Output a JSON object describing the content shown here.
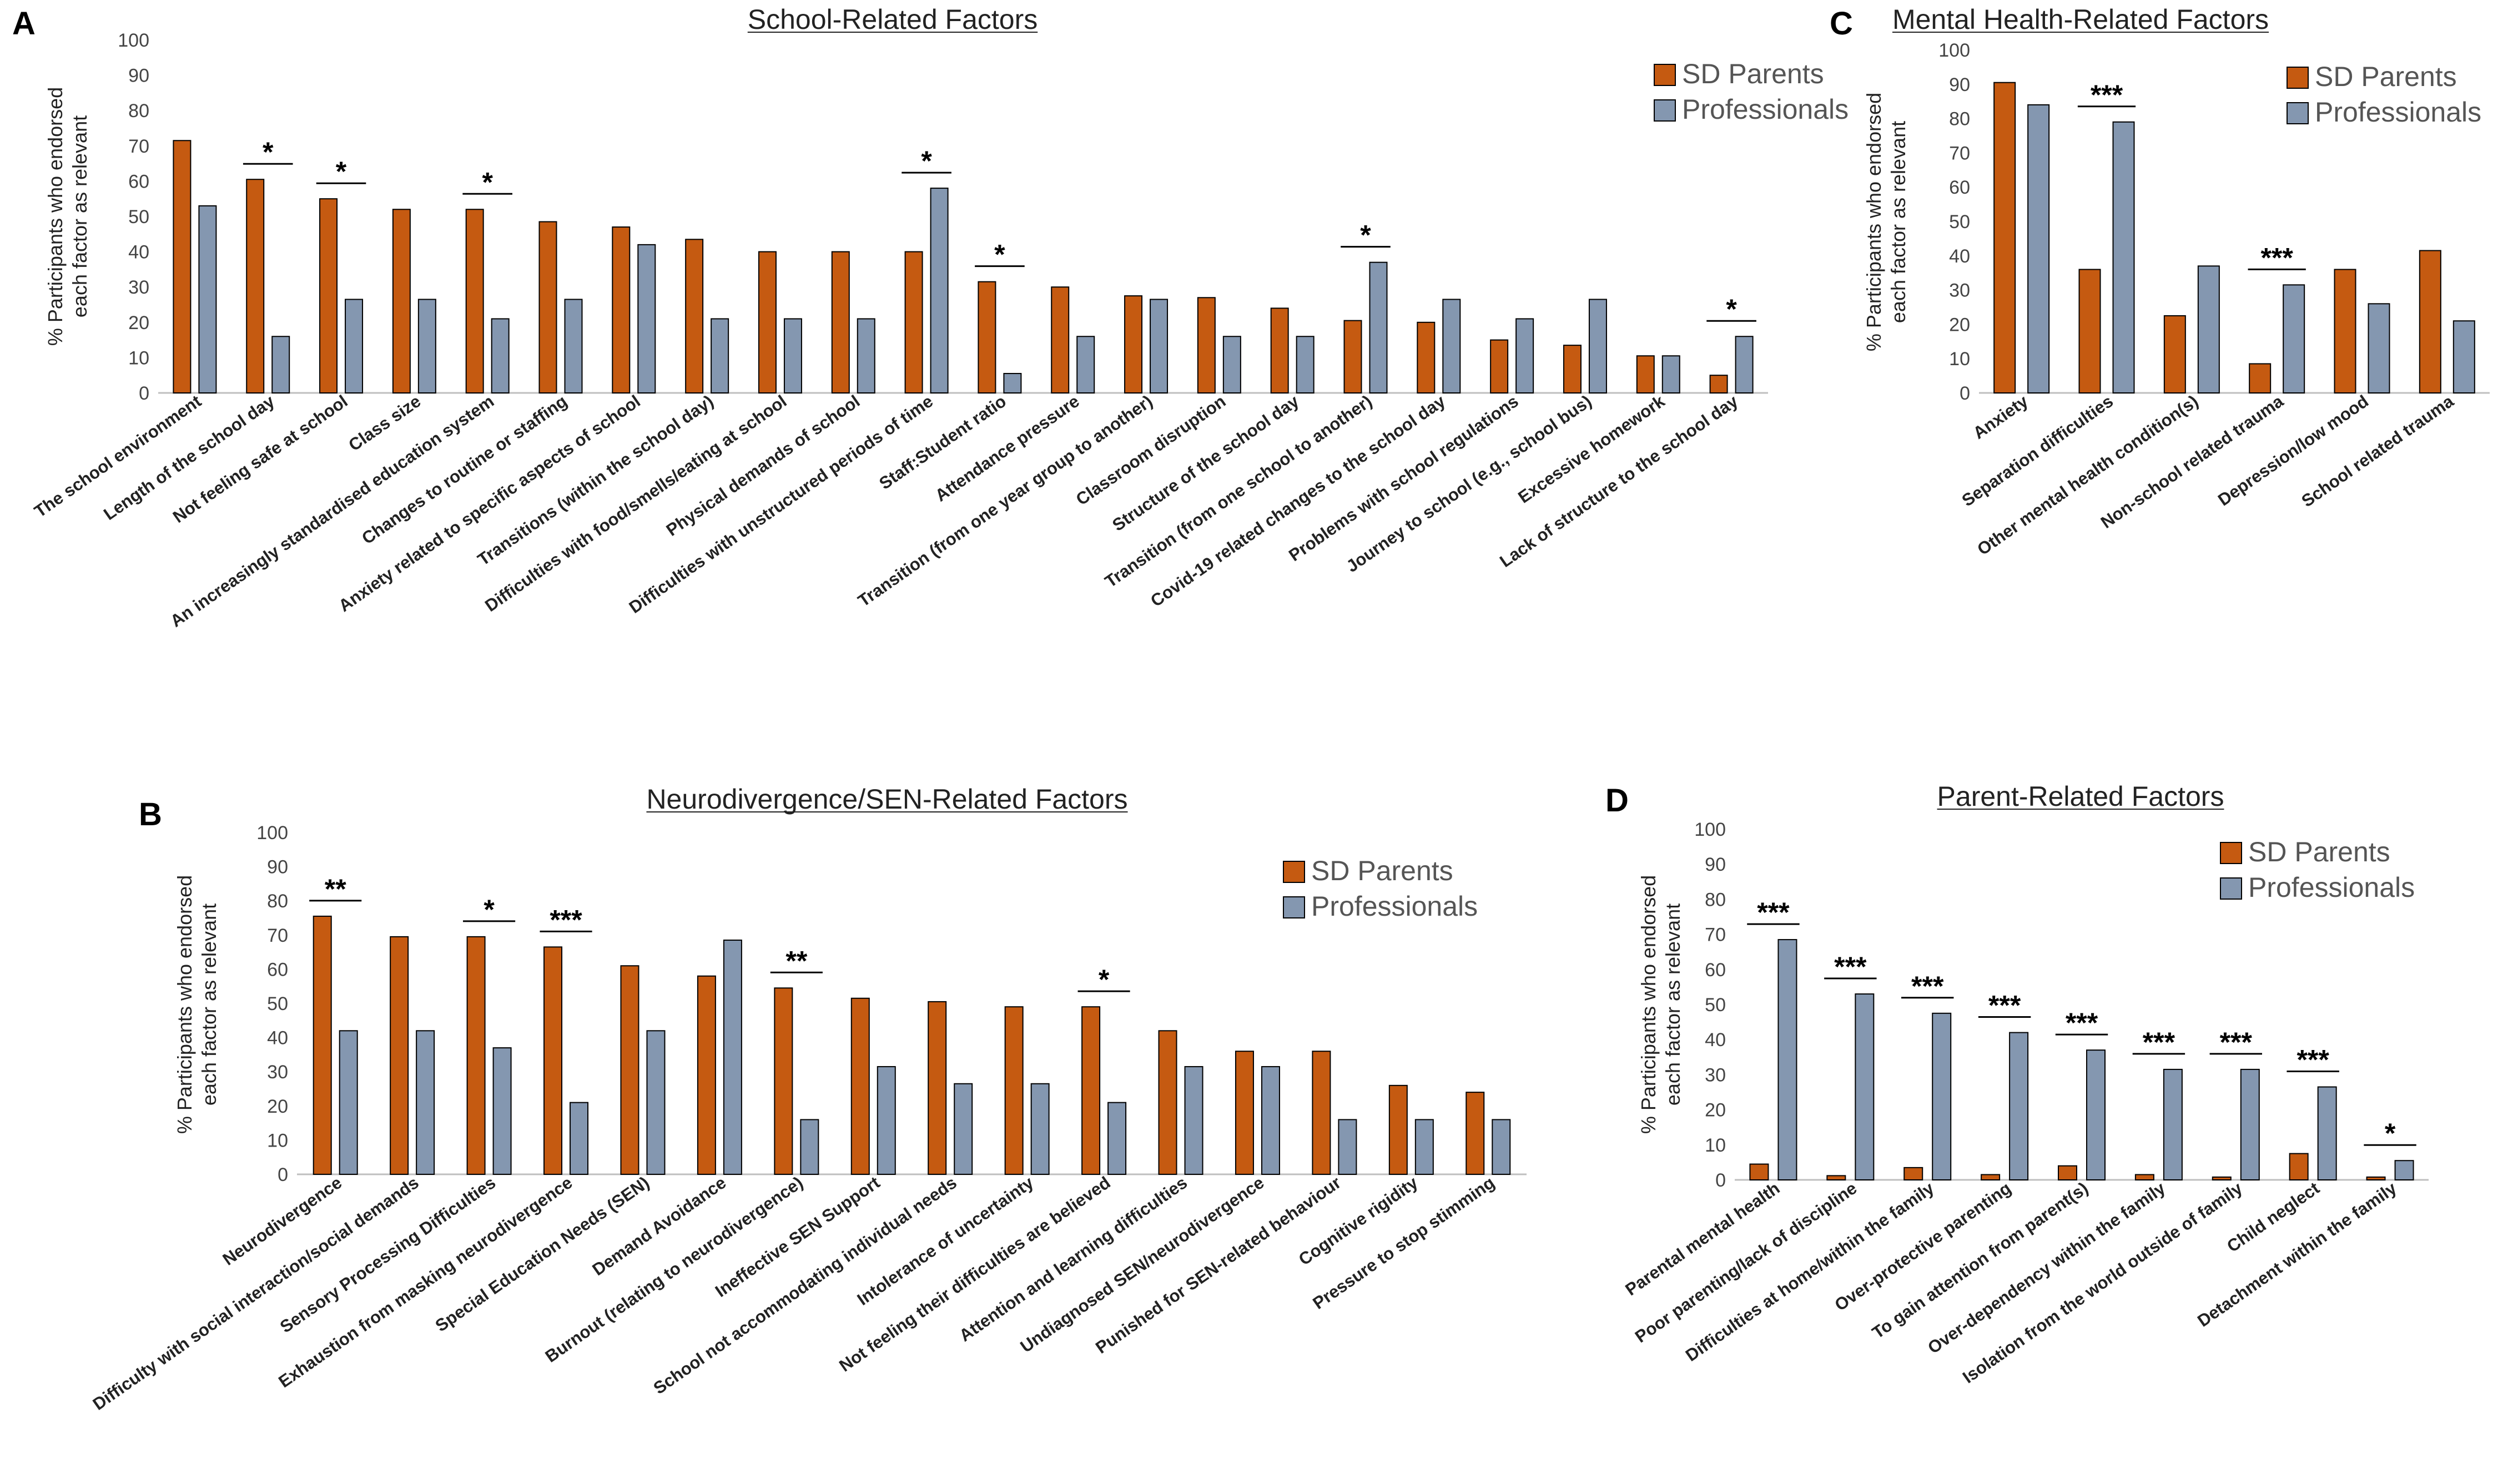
{
  "colors": {
    "parents": "#C55A11",
    "professionals": "#8497B0",
    "axis": "#bfbfbf"
  },
  "chart_data": [
    {
      "type": "bar",
      "panel": "A",
      "title": "School-Related Factors",
      "ylabel": [
        "% Participants who endorsed",
        "each factor as relevant"
      ],
      "ylim": [
        0,
        100
      ],
      "yticks": [
        0,
        10,
        20,
        30,
        40,
        50,
        60,
        70,
        80,
        90,
        100
      ],
      "legend": [
        "SD Parents",
        "Professionals"
      ],
      "categories": [
        "The school environment",
        "Length of the school day",
        "Not feeling safe at school",
        "Class size",
        "An increasingly standardised education system",
        "Changes to routine or staffing",
        "Anxiety related to specific aspects of school",
        "Transitions (within the school day)",
        "Difficulties with food/smells/eating at school",
        "Physical demands of school",
        "Difficulties with unstructured periods of time",
        "Staff:Student ratio",
        "Attendance pressure",
        "Transition (from one year group to another)",
        "Classroom disruption",
        "Structure of the school day",
        "Transition (from one school to another)",
        "Covid-19 related changes to the school day",
        "Problems with school regulations",
        "Journey to school (e.g., school bus)",
        "Excessive homework",
        "Lack of structure to the school day"
      ],
      "series": [
        {
          "name": "SD Parents",
          "values": [
            71.5,
            60.5,
            55,
            52,
            52,
            48.5,
            47,
            43.5,
            40,
            40,
            40,
            31.5,
            30,
            27.5,
            27,
            24,
            20.5,
            20,
            15,
            13.5,
            10.5,
            5
          ]
        },
        {
          "name": "Professionals",
          "values": [
            53,
            16,
            26.5,
            26.5,
            21,
            26.5,
            42,
            21,
            21,
            21,
            58,
            5.5,
            16,
            26.5,
            16,
            16,
            37,
            26.5,
            21,
            26.5,
            10.5,
            16
          ]
        }
      ],
      "significance": [
        "",
        "*",
        "*",
        "",
        "*",
        "",
        "",
        "",
        "",
        "",
        "*",
        "*",
        "",
        "",
        "",
        "",
        "*",
        "",
        "",
        "",
        "",
        "*"
      ]
    },
    {
      "type": "bar",
      "panel": "B",
      "title": "Neurodivergence/SEN-Related Factors",
      "ylabel": [
        "% Participants who endorsed",
        "each factor as relevant"
      ],
      "ylim": [
        0,
        100
      ],
      "yticks": [
        0,
        10,
        20,
        30,
        40,
        50,
        60,
        70,
        80,
        90,
        100
      ],
      "legend": [
        "SD Parents",
        "Professionals"
      ],
      "categories": [
        "Neurodivergence",
        "Difficulty with social interaction/social demands",
        "Sensory Processing Difficulties",
        "Exhaustion from masking neurodivergence",
        "Special Education Needs (SEN)",
        "Demand Avoidance",
        "Burnout (relating to neurodivergence)",
        "Ineffective SEN Support",
        "School not accommodating individual needs",
        "Intolerance of uncertainty",
        "Not feeling their difficulties are believed",
        "Attention and learning difficulties",
        "Undiagnosed SEN/neurodivergence",
        "Punished for SEN-related behaviour",
        "Cognitive rigidity",
        "Pressure to stop stimming"
      ],
      "series": [
        {
          "name": "SD Parents",
          "values": [
            75.5,
            69.5,
            69.5,
            66.5,
            61,
            58,
            54.5,
            51.5,
            50.5,
            49,
            49,
            42,
            36,
            36,
            26,
            24
          ]
        },
        {
          "name": "Professionals",
          "values": [
            42,
            42,
            37,
            21,
            42,
            68.5,
            16,
            31.5,
            26.5,
            26.5,
            21,
            31.5,
            31.5,
            16,
            16,
            16
          ]
        }
      ],
      "significance": [
        "**",
        "",
        "*",
        "***",
        "",
        "",
        "**",
        "",
        "",
        "",
        "*",
        "",
        "",
        "",
        "",
        ""
      ]
    },
    {
      "type": "bar",
      "panel": "C",
      "title": "Mental Health-Related Factors",
      "ylabel": [
        "% Participants who endorsed",
        "each factor as relevant"
      ],
      "ylim": [
        0,
        100
      ],
      "yticks": [
        0,
        10,
        20,
        30,
        40,
        50,
        60,
        70,
        80,
        90,
        100
      ],
      "legend": [
        "SD Parents",
        "Professionals"
      ],
      "categories": [
        "Anxiety",
        "Separation difficulties",
        "Other mental health condition(s)",
        "Non-school related trauma",
        "Depression/low mood",
        "School related trauma"
      ],
      "series": [
        {
          "name": "SD Parents",
          "values": [
            90.5,
            36,
            22.5,
            8.5,
            36,
            41.5
          ]
        },
        {
          "name": "Professionals",
          "values": [
            84,
            79,
            37,
            31.5,
            26,
            21
          ]
        }
      ],
      "significance": [
        "",
        "***",
        "",
        "***",
        "",
        ""
      ]
    },
    {
      "type": "bar",
      "panel": "D",
      "title": "Parent-Related Factors",
      "ylabel": [
        "% Participants who endorsed",
        "each factor as relevant"
      ],
      "ylim": [
        0,
        100
      ],
      "yticks": [
        0,
        10,
        20,
        30,
        40,
        50,
        60,
        70,
        80,
        90,
        100
      ],
      "legend": [
        "SD Parents",
        "Professionals"
      ],
      "categories": [
        "Parental mental health",
        "Poor parenting/lack of discipline",
        "Difficulties at home/within the family",
        "Over-protective parenting",
        "To gain attention from parent(s)",
        "Over-dependency within the family",
        "Isolation from the world outside of family",
        "Child neglect",
        "Detachment within the family"
      ],
      "series": [
        {
          "name": "SD Parents",
          "values": [
            4.5,
            1.2,
            3.5,
            1.5,
            4,
            1.5,
            0.8,
            7.5,
            0.8
          ]
        },
        {
          "name": "Professionals",
          "values": [
            68.5,
            53,
            47.5,
            42,
            37,
            31.5,
            31.5,
            26.5,
            5.5
          ]
        }
      ],
      "significance": [
        "***",
        "***",
        "***",
        "***",
        "***",
        "***",
        "***",
        "***",
        "*"
      ]
    }
  ]
}
